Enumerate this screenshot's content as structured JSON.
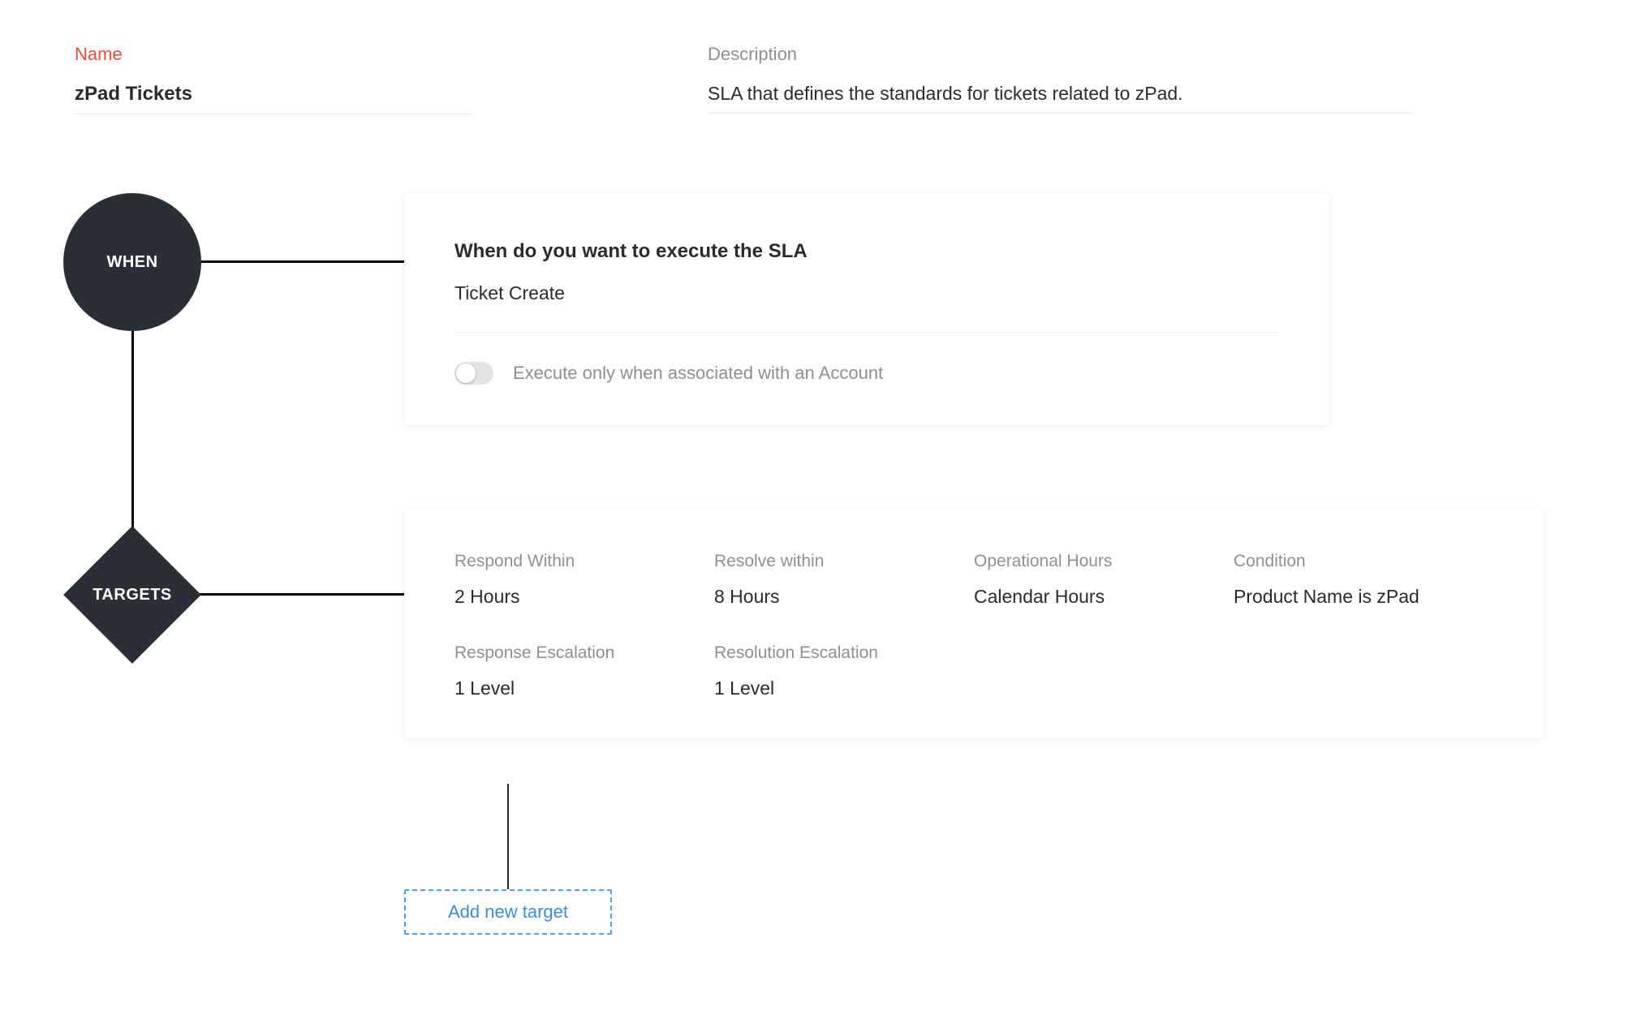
{
  "form": {
    "name_label": "Name",
    "name_value": "zPad Tickets",
    "description_label": "Description",
    "description_value": "SLA that defines the standards for tickets related to zPad."
  },
  "flow": {
    "when_node_label": "WHEN",
    "targets_node_label": "TARGETS",
    "node_color": "#2a2e36",
    "line_color": "#000000"
  },
  "when_card": {
    "title": "When do you want to execute the SLA",
    "value": "Ticket Create",
    "toggle_label": "Execute only when associated with an Account",
    "toggle_on": false
  },
  "targets_card": {
    "cells": [
      {
        "label": "Respond Within",
        "value": "2 Hours"
      },
      {
        "label": "Resolve within",
        "value": "8 Hours"
      },
      {
        "label": "Operational Hours",
        "value": "Calendar Hours"
      },
      {
        "label": "Condition",
        "value": "Product Name is zPad"
      },
      {
        "label": "Response Escalation",
        "value": "1 Level"
      },
      {
        "label": "Resolution Escalation",
        "value": "1 Level"
      }
    ]
  },
  "add_target_label": "Add new target",
  "colors": {
    "label_muted": "#8f8f8f",
    "required_label": "#e74c3c",
    "text": "#2b2b2b",
    "card_bg": "#ffffff",
    "divider": "#eeeeee",
    "toggle_track": "#e3e3e3",
    "link_blue": "#3a8fd6",
    "dashed_border": "#4aa3e8"
  }
}
